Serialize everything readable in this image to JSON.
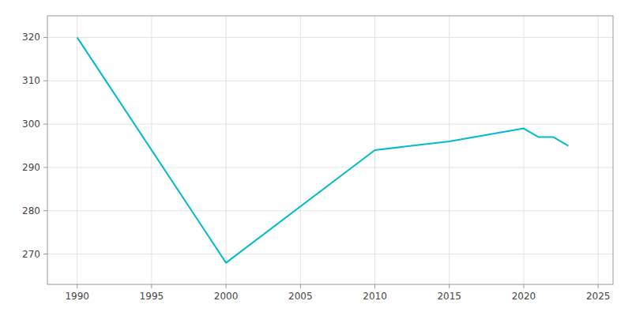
{
  "chart_data": {
    "type": "line",
    "x": [
      1990,
      2000,
      2010,
      2015,
      2020,
      2021,
      2022,
      2023
    ],
    "values": [
      320,
      268,
      294,
      296,
      299,
      297,
      297,
      295
    ],
    "color": "#00BBCC",
    "xlim": [
      1988,
      2026
    ],
    "ylim": [
      263,
      325
    ],
    "xticks": [
      1990,
      1995,
      2000,
      2005,
      2010,
      2015,
      2020,
      2025
    ],
    "yticks": [
      270,
      280,
      290,
      300,
      310,
      320
    ],
    "grid": true
  }
}
